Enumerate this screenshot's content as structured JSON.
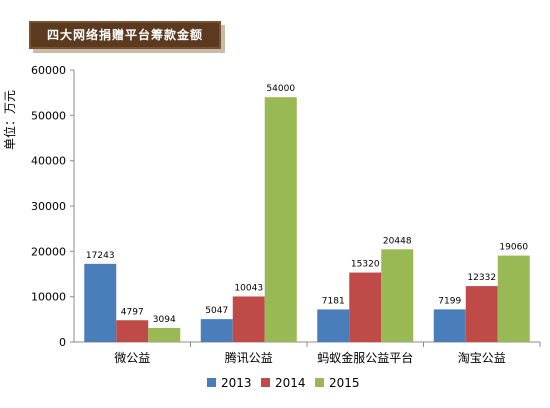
{
  "chart_data": {
    "type": "bar",
    "title": "四大网络捐赠平台筹款金额",
    "ylabel": "单位：万元",
    "xlabel": "",
    "categories": [
      "微公益",
      "腾讯公益",
      "蚂蚁金服公益平台",
      "淘宝公益"
    ],
    "series": [
      {
        "name": "2013",
        "values": [
          17243,
          5047,
          7181,
          7199
        ],
        "color": "#4a7ebb"
      },
      {
        "name": "2014",
        "values": [
          4797,
          10043,
          15320,
          12332
        ],
        "color": "#be4b48"
      },
      {
        "name": "2015",
        "values": [
          3094,
          54000,
          20448,
          19060
        ],
        "color": "#98b954"
      }
    ],
    "ylim": [
      0,
      60000
    ],
    "yticks": [
      0,
      10000,
      20000,
      30000,
      40000,
      50000,
      60000
    ],
    "grid": false,
    "legend_position": "bottom",
    "data_labels": true
  }
}
